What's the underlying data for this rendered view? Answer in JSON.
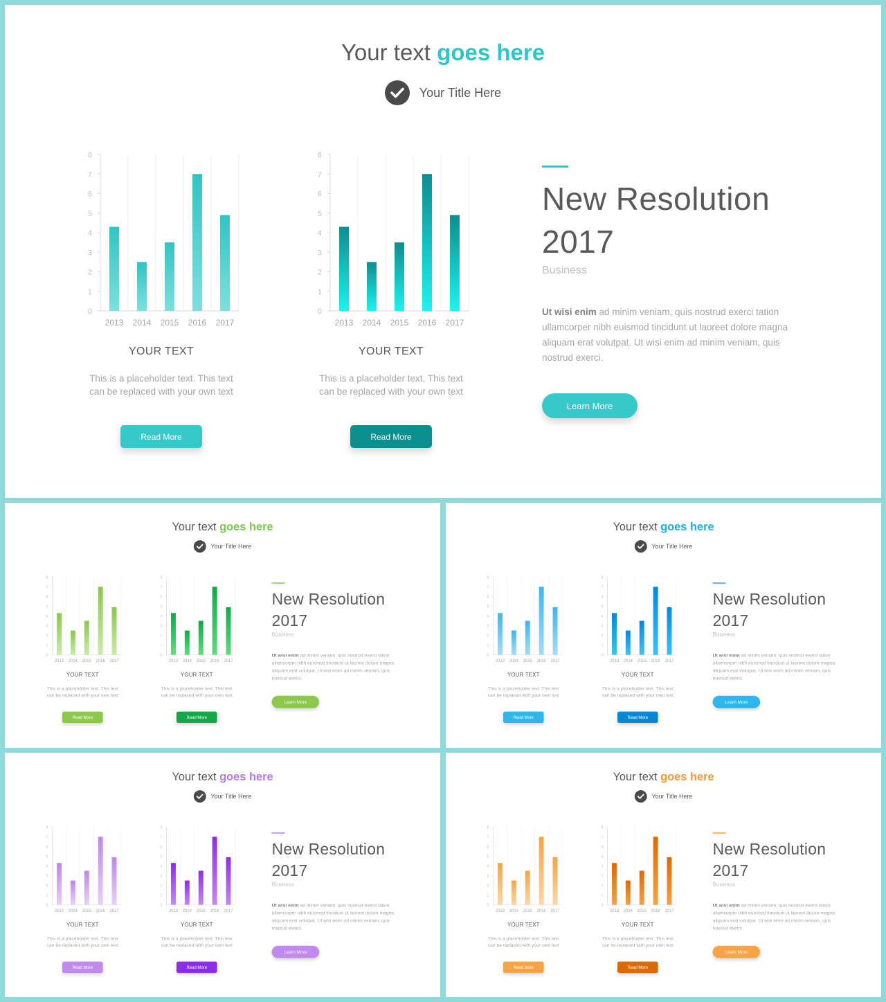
{
  "slide": {
    "headline_plain": "Your text ",
    "headline_accent": "goes here",
    "subtitle": "Your Title Here",
    "card_title": "YOUR TEXT",
    "card_text": "This is a placeholder text. This text can be replaced with your own text",
    "card_button": "Read More",
    "info_title_line1": "New Resolution",
    "info_title_line2": "2017",
    "info_category": "Business",
    "info_body_bold": "Ut wisi enim",
    "info_body": " ad minim veniam, quis nostrud exerci tation ullamcorper nibh euismod tincidunt ut laoreet dolore magna aliquam erat volutpat. Ut wisi enim ad minim veniam, quis nostrud exerci.",
    "info_button": "Learn More"
  },
  "variants": [
    {
      "name": "teal",
      "accent": "#2fc6c6",
      "light": [
        "#31c4c4",
        "#7fdfdf"
      ],
      "dark": [
        "#0a8f8f",
        "#22f0f0"
      ],
      "btn1": "#35c9c9",
      "btn2": "#0a8f8f",
      "learn": "#35c9c9"
    },
    {
      "name": "green",
      "accent": "#7cc84a",
      "light": [
        "#8cc84b",
        "#cbeaa8"
      ],
      "dark": [
        "#12a84a",
        "#5fdc7e"
      ],
      "btn1": "#8cc84b",
      "btn2": "#12a84a",
      "learn": "#8cc84b"
    },
    {
      "name": "blue",
      "accent": "#1eaee6",
      "light": [
        "#3cb6ee",
        "#a5dcf7"
      ],
      "dark": [
        "#0a86d8",
        "#3fc0f6"
      ],
      "btn1": "#2fb6ee",
      "btn2": "#0a86d8",
      "learn": "#2fb6ee"
    },
    {
      "name": "purple",
      "accent": "#b477e8",
      "light": [
        "#bf86ec",
        "#e7d0f8"
      ],
      "dark": [
        "#8c2ee6",
        "#c28af3"
      ],
      "btn1": "#c08aee",
      "btn2": "#8c2ee6",
      "learn": "#c08aee"
    },
    {
      "name": "orange",
      "accent": "#f39a33",
      "light": [
        "#f6a445",
        "#fbd7a8"
      ],
      "dark": [
        "#d86a0a",
        "#f3a24a"
      ],
      "btn1": "#f6a445",
      "btn2": "#d86a0a",
      "learn": "#f6a445"
    }
  ],
  "chart_data": [
    {
      "type": "bar",
      "categories": [
        "2013",
        "2014",
        "2015",
        "2016",
        "2017"
      ],
      "values": [
        4.3,
        2.5,
        3.5,
        7.0,
        4.9
      ],
      "yticks": [
        "0",
        "1",
        "2",
        "3",
        "4",
        "5",
        "6",
        "7",
        "8"
      ],
      "ylim": [
        0,
        8
      ],
      "grid": true
    },
    {
      "type": "bar",
      "categories": [
        "2013",
        "2014",
        "2015",
        "2016",
        "2017"
      ],
      "values": [
        4.3,
        2.5,
        3.5,
        7.0,
        4.9
      ],
      "yticks": [
        "0",
        "1",
        "2",
        "3",
        "4",
        "5",
        "6",
        "7",
        "8"
      ],
      "ylim": [
        0,
        8
      ],
      "grid": true
    }
  ]
}
